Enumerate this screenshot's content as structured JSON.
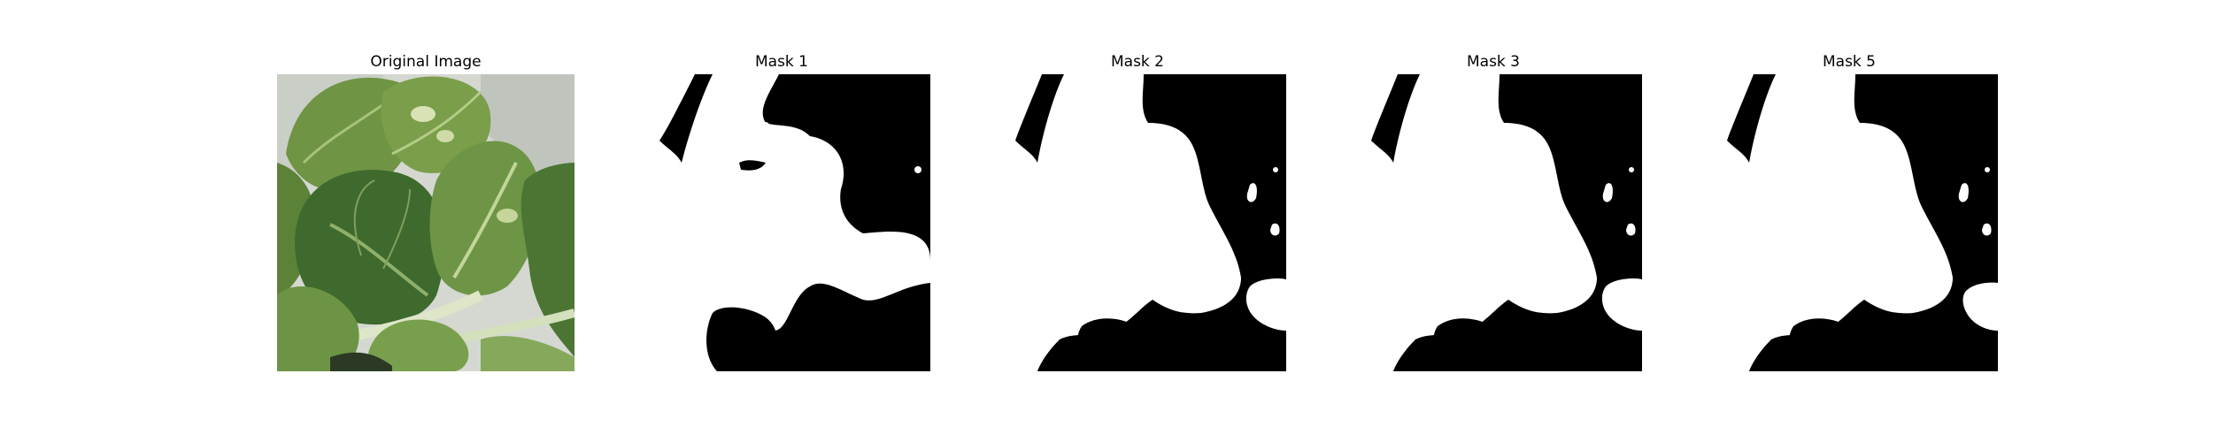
{
  "figure": {
    "panels": [
      {
        "title": "Original Image",
        "kind": "photo",
        "subject": "leafy-greens"
      },
      {
        "title": "Mask 1",
        "kind": "mask",
        "variant": 1
      },
      {
        "title": "Mask 2",
        "kind": "mask",
        "variant": 2
      },
      {
        "title": "Mask 3",
        "kind": "mask",
        "variant": 3
      },
      {
        "title": "Mask 5",
        "kind": "mask",
        "variant": 5
      }
    ]
  },
  "colors": {
    "mask_foreground": "#ffffff",
    "mask_background": "#000000",
    "leaf_dark": "#3f6a2e",
    "leaf_mid": "#5f8a3e",
    "leaf_light": "#9cb86a",
    "stem": "#d8e2c0",
    "backdrop": "#d9dcd6"
  }
}
